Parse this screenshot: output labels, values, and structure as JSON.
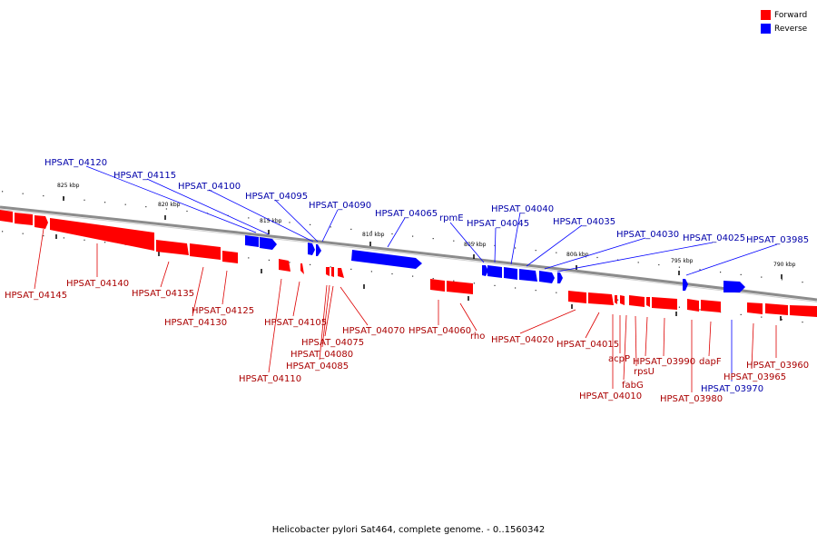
{
  "legend": {
    "forward_label": "Forward",
    "reverse_label": "Reverse",
    "forward_color": "#ff0000",
    "reverse_color": "#0000ff"
  },
  "caption": "Helicobacter pylori Sat464, complete genome. - 0..1560342",
  "ruler_labels": [
    "825 kbp",
    "820 kbp",
    "815 kbp",
    "810 kbp",
    "805 kbp",
    "800 kbp",
    "795 kbp",
    "790 kbp"
  ],
  "genes_reverse": [
    "HPSAT_04120",
    "HPSAT_04115",
    "HPSAT_04100",
    "HPSAT_04095",
    "HPSAT_04090",
    "HPSAT_04065",
    "rpmE",
    "HPSAT_04045",
    "HPSAT_04040",
    "HPSAT_04035",
    "HPSAT_04030",
    "HPSAT_04025",
    "HPSAT_03985",
    "HPSAT_03970"
  ],
  "genes_forward": [
    "HPSAT_04145",
    "HPSAT_04140",
    "HPSAT_04135",
    "HPSAT_04130",
    "HPSAT_04125",
    "HPSAT_04110",
    "HPSAT_04105",
    "HPSAT_04085",
    "HPSAT_04080",
    "HPSAT_04075",
    "HPSAT_04070",
    "HPSAT_04060",
    "rho",
    "HPSAT_04020",
    "HPSAT_04015",
    "HPSAT_04010",
    "acpP",
    "fabG",
    "rpsU",
    "HPSAT_03990",
    "HPSAT_03980",
    "dapF",
    "HPSAT_03965",
    "HPSAT_03960"
  ]
}
